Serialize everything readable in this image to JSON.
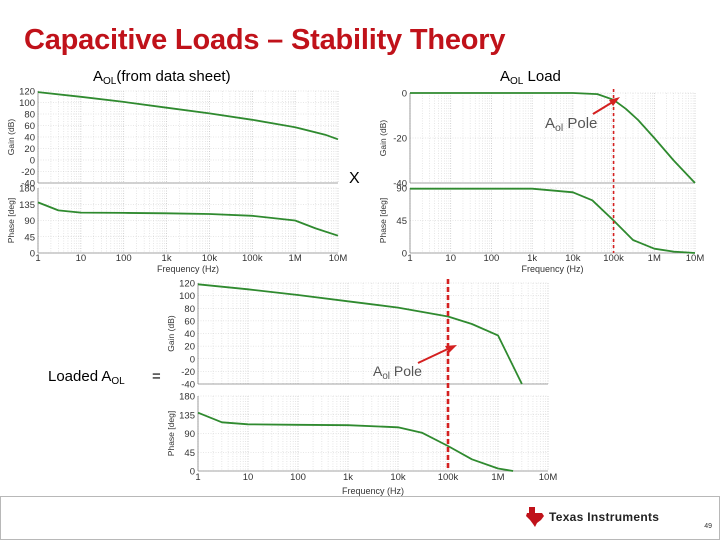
{
  "slide": {
    "title": "Capacitive Loads – Stability Theory",
    "caption_aol_base": "A",
    "caption_aol_sub": "OL",
    "caption_aol_rest": "(from data sheet)",
    "caption_load_base": "A",
    "caption_load_sub": "OL",
    "caption_load_rest": " Load",
    "caption_loaded_base": "Loaded A",
    "caption_loaded_sub": "OL",
    "operator_multiply": "X",
    "operator_equals": "=",
    "pole_label_base": "A",
    "pole_label_sub": "ol",
    "pole_label_rest": " Pole",
    "footer_logo_text": "Texas Instruments",
    "page_number": "49"
  },
  "colors": {
    "title": "#c0121a",
    "curve": "#2f8a2f",
    "pole_marker": "#d42020",
    "ti_logo": "#c0121a"
  },
  "chart_data": [
    {
      "id": "aol_datasheet",
      "type": "line",
      "xscale": "log",
      "xlabel": "Frequency (Hz)",
      "x_ticks": [
        "1",
        "10",
        "100",
        "1k",
        "10k",
        "100k",
        "1M",
        "10M"
      ],
      "panels": [
        {
          "ylabel": "Gain (dB)",
          "ylim": [
            -40,
            120
          ],
          "y_ticks": [
            "120",
            "100",
            "80",
            "60",
            "40",
            "20",
            "0",
            "-20",
            "-40"
          ],
          "series": [
            {
              "x": [
                1,
                10,
                100,
                1000,
                10000,
                100000,
                1000000,
                5000000,
                10000000
              ],
              "y": [
                118,
                110,
                101,
                91,
                81,
                70,
                57,
                44,
                36
              ]
            }
          ]
        },
        {
          "ylabel": "Phase [deg]",
          "ylim": [
            0,
            180
          ],
          "y_ticks": [
            "180",
            "135",
            "90",
            "45",
            "0"
          ],
          "series": [
            {
              "x": [
                1,
                3,
                10,
                100,
                1000,
                10000,
                100000,
                1000000,
                3000000,
                10000000
              ],
              "y": [
                140,
                118,
                112,
                111,
                110,
                108,
                103,
                90,
                68,
                48
              ]
            }
          ]
        }
      ]
    },
    {
      "id": "aol_load",
      "type": "line",
      "xscale": "log",
      "xlabel": "Frequency (Hz)",
      "x_ticks": [
        "1",
        "10",
        "100",
        "1k",
        "10k",
        "100k",
        "1M",
        "10M"
      ],
      "pole_freq": 100000,
      "panels": [
        {
          "ylabel": "Gain (dB)",
          "ylim": [
            -40,
            0
          ],
          "y_ticks": [
            "0",
            "-20",
            "-40"
          ],
          "series": [
            {
              "x": [
                1,
                1000,
                10000,
                40000,
                100000,
                200000,
                400000,
                1000000,
                3000000,
                10000000
              ],
              "y": [
                0,
                0,
                0,
                -0.5,
                -3,
                -7,
                -12,
                -20,
                -30,
                -40
              ]
            }
          ]
        },
        {
          "ylabel": "Phase [deg]",
          "ylim": [
            0,
            90
          ],
          "y_ticks": [
            "90",
            "45",
            "0"
          ],
          "series": [
            {
              "x": [
                1,
                1000,
                10000,
                30000,
                100000,
                300000,
                1000000,
                3000000,
                10000000
              ],
              "y": [
                89,
                89,
                84,
                73,
                45,
                18,
                6,
                2,
                0
              ]
            }
          ]
        }
      ]
    },
    {
      "id": "loaded_aol",
      "type": "line",
      "xscale": "log",
      "xlabel": "Frequency (Hz)",
      "x_ticks": [
        "1",
        "10",
        "100",
        "1k",
        "10k",
        "100k",
        "1M",
        "10M"
      ],
      "pole_freq": 100000,
      "panels": [
        {
          "ylabel": "Gain (dB)",
          "ylim": [
            -40,
            120
          ],
          "y_ticks": [
            "120",
            "100",
            "80",
            "60",
            "40",
            "20",
            "0",
            "-20",
            "-40"
          ],
          "series": [
            {
              "x": [
                1,
                10,
                100,
                1000,
                10000,
                100000,
                300000,
                1000000,
                3000000
              ],
              "y": [
                118,
                110,
                101,
                91,
                81,
                67,
                55,
                37,
                -40
              ]
            }
          ]
        },
        {
          "ylabel": "Phase [deg]",
          "ylim": [
            0,
            180
          ],
          "y_ticks": [
            "180",
            "135",
            "90",
            "45",
            "0"
          ],
          "series": [
            {
              "x": [
                1,
                3,
                10,
                100,
                1000,
                10000,
                30000,
                100000,
                300000,
                1000000,
                2000000
              ],
              "y": [
                140,
                117,
                112,
                111,
                110,
                105,
                92,
                60,
                28,
                6,
                0
              ]
            }
          ]
        }
      ]
    }
  ]
}
